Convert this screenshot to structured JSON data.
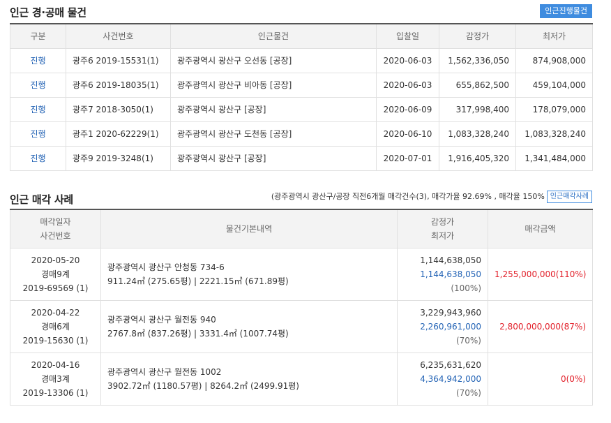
{
  "nearby": {
    "title": "인근 경·공매 물건",
    "button": "인근진행물건",
    "columns": [
      "구분",
      "사건번호",
      "인근물건",
      "입찰일",
      "감정가",
      "최저가"
    ],
    "rows": [
      {
        "status": "진행",
        "case": "광주6 2019-15531(1)",
        "item": "광주광역시 광산구 오선동 [공장]",
        "date": "2020-06-03",
        "appraisal": "1,562,336,050",
        "minimum": "874,908,000"
      },
      {
        "status": "진행",
        "case": "광주6 2019-18035(1)",
        "item": "광주광역시 광산구 비아동 [공장]",
        "date": "2020-06-03",
        "appraisal": "655,862,500",
        "minimum": "459,104,000"
      },
      {
        "status": "진행",
        "case": "광주7 2018-3050(1)",
        "item": "광주광역시 광산구 [공장]",
        "date": "2020-06-09",
        "appraisal": "317,998,400",
        "minimum": "178,079,000"
      },
      {
        "status": "진행",
        "case": "광주1 2020-62229(1)",
        "item": "광주광역시 광산구 도천동 [공장]",
        "date": "2020-06-10",
        "appraisal": "1,083,328,240",
        "minimum": "1,083,328,240"
      },
      {
        "status": "진행",
        "case": "광주9 2019-3248(1)",
        "item": "광주광역시 광산구 [공장]",
        "date": "2020-07-01",
        "appraisal": "1,916,405,320",
        "minimum": "1,341,484,000"
      }
    ]
  },
  "sales": {
    "title": "인근 매각 사례",
    "summary": "(광주광역시 광산구/공장 직전6개월 매각건수(3), 매각가율 92.69% , 매각율 150%",
    "button": "인근매각사례",
    "header": {
      "col1_line1": "매각일자",
      "col1_line2": "사건번호",
      "col2": "물건기본내역",
      "col3_line1": "감정가",
      "col3_line2": "최저가",
      "col4": "매각금액"
    },
    "rows": [
      {
        "date": "2020-05-20",
        "court": "경매9계",
        "case": "2019-69569 (1)",
        "address": "광주광역시 광산구 안청동 734-6",
        "area": "911.24㎡ (275.65평) | 2221.15㎡ (671.89평)",
        "appraisal": "1,144,638,050",
        "minimum": "1,144,638,050",
        "ratio": "(100%)",
        "price": "1,255,000,000(110%)"
      },
      {
        "date": "2020-04-22",
        "court": "경매6계",
        "case": "2019-15630 (1)",
        "address": "광주광역시 광산구 월전동 940",
        "area": "2767.8㎡ (837.26평) | 3331.4㎡ (1007.74평)",
        "appraisal": "3,229,943,960",
        "minimum": "2,260,961,000",
        "ratio": "(70%)",
        "price": "2,800,000,000(87%)"
      },
      {
        "date": "2020-04-16",
        "court": "경매3계",
        "case": "2019-13306 (1)",
        "address": "광주광역시 광산구 월전동 1002",
        "area": "3902.72㎡ (1180.57평) | 8264.2㎡ (2499.91평)",
        "appraisal": "6,235,631,620",
        "minimum": "4,364,942,000",
        "ratio": "(70%)",
        "price": "0(0%)"
      }
    ]
  },
  "colors": {
    "accent": "#3f8cdf",
    "link": "#2363b5",
    "price": "#e2202a"
  }
}
